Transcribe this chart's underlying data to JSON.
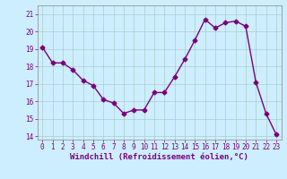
{
  "x": [
    0,
    1,
    2,
    3,
    4,
    5,
    6,
    7,
    8,
    9,
    10,
    11,
    12,
    13,
    14,
    15,
    16,
    17,
    18,
    19,
    20,
    21,
    22,
    23
  ],
  "y": [
    19.1,
    18.2,
    18.2,
    17.8,
    17.2,
    16.9,
    16.1,
    15.9,
    15.3,
    15.5,
    15.5,
    16.5,
    16.5,
    17.4,
    18.4,
    19.5,
    20.7,
    20.2,
    20.5,
    20.6,
    20.3,
    17.1,
    15.3,
    14.1
  ],
  "line_color": "#7B007B",
  "marker": "D",
  "marker_size": 2.5,
  "bg_color": "#cceeff",
  "grid_color": "#aacccc",
  "xlabel": "Windchill (Refroidissement éolien,°C)",
  "ylim": [
    13.8,
    21.5
  ],
  "xlim": [
    -0.5,
    23.5
  ],
  "yticks": [
    14,
    15,
    16,
    17,
    18,
    19,
    20,
    21
  ],
  "xticks": [
    0,
    1,
    2,
    3,
    4,
    5,
    6,
    7,
    8,
    9,
    10,
    11,
    12,
    13,
    14,
    15,
    16,
    17,
    18,
    19,
    20,
    21,
    22,
    23
  ],
  "tick_color": "#7B007B",
  "tick_fontsize": 5.5,
  "xlabel_fontsize": 6.5,
  "linewidth": 1.0
}
